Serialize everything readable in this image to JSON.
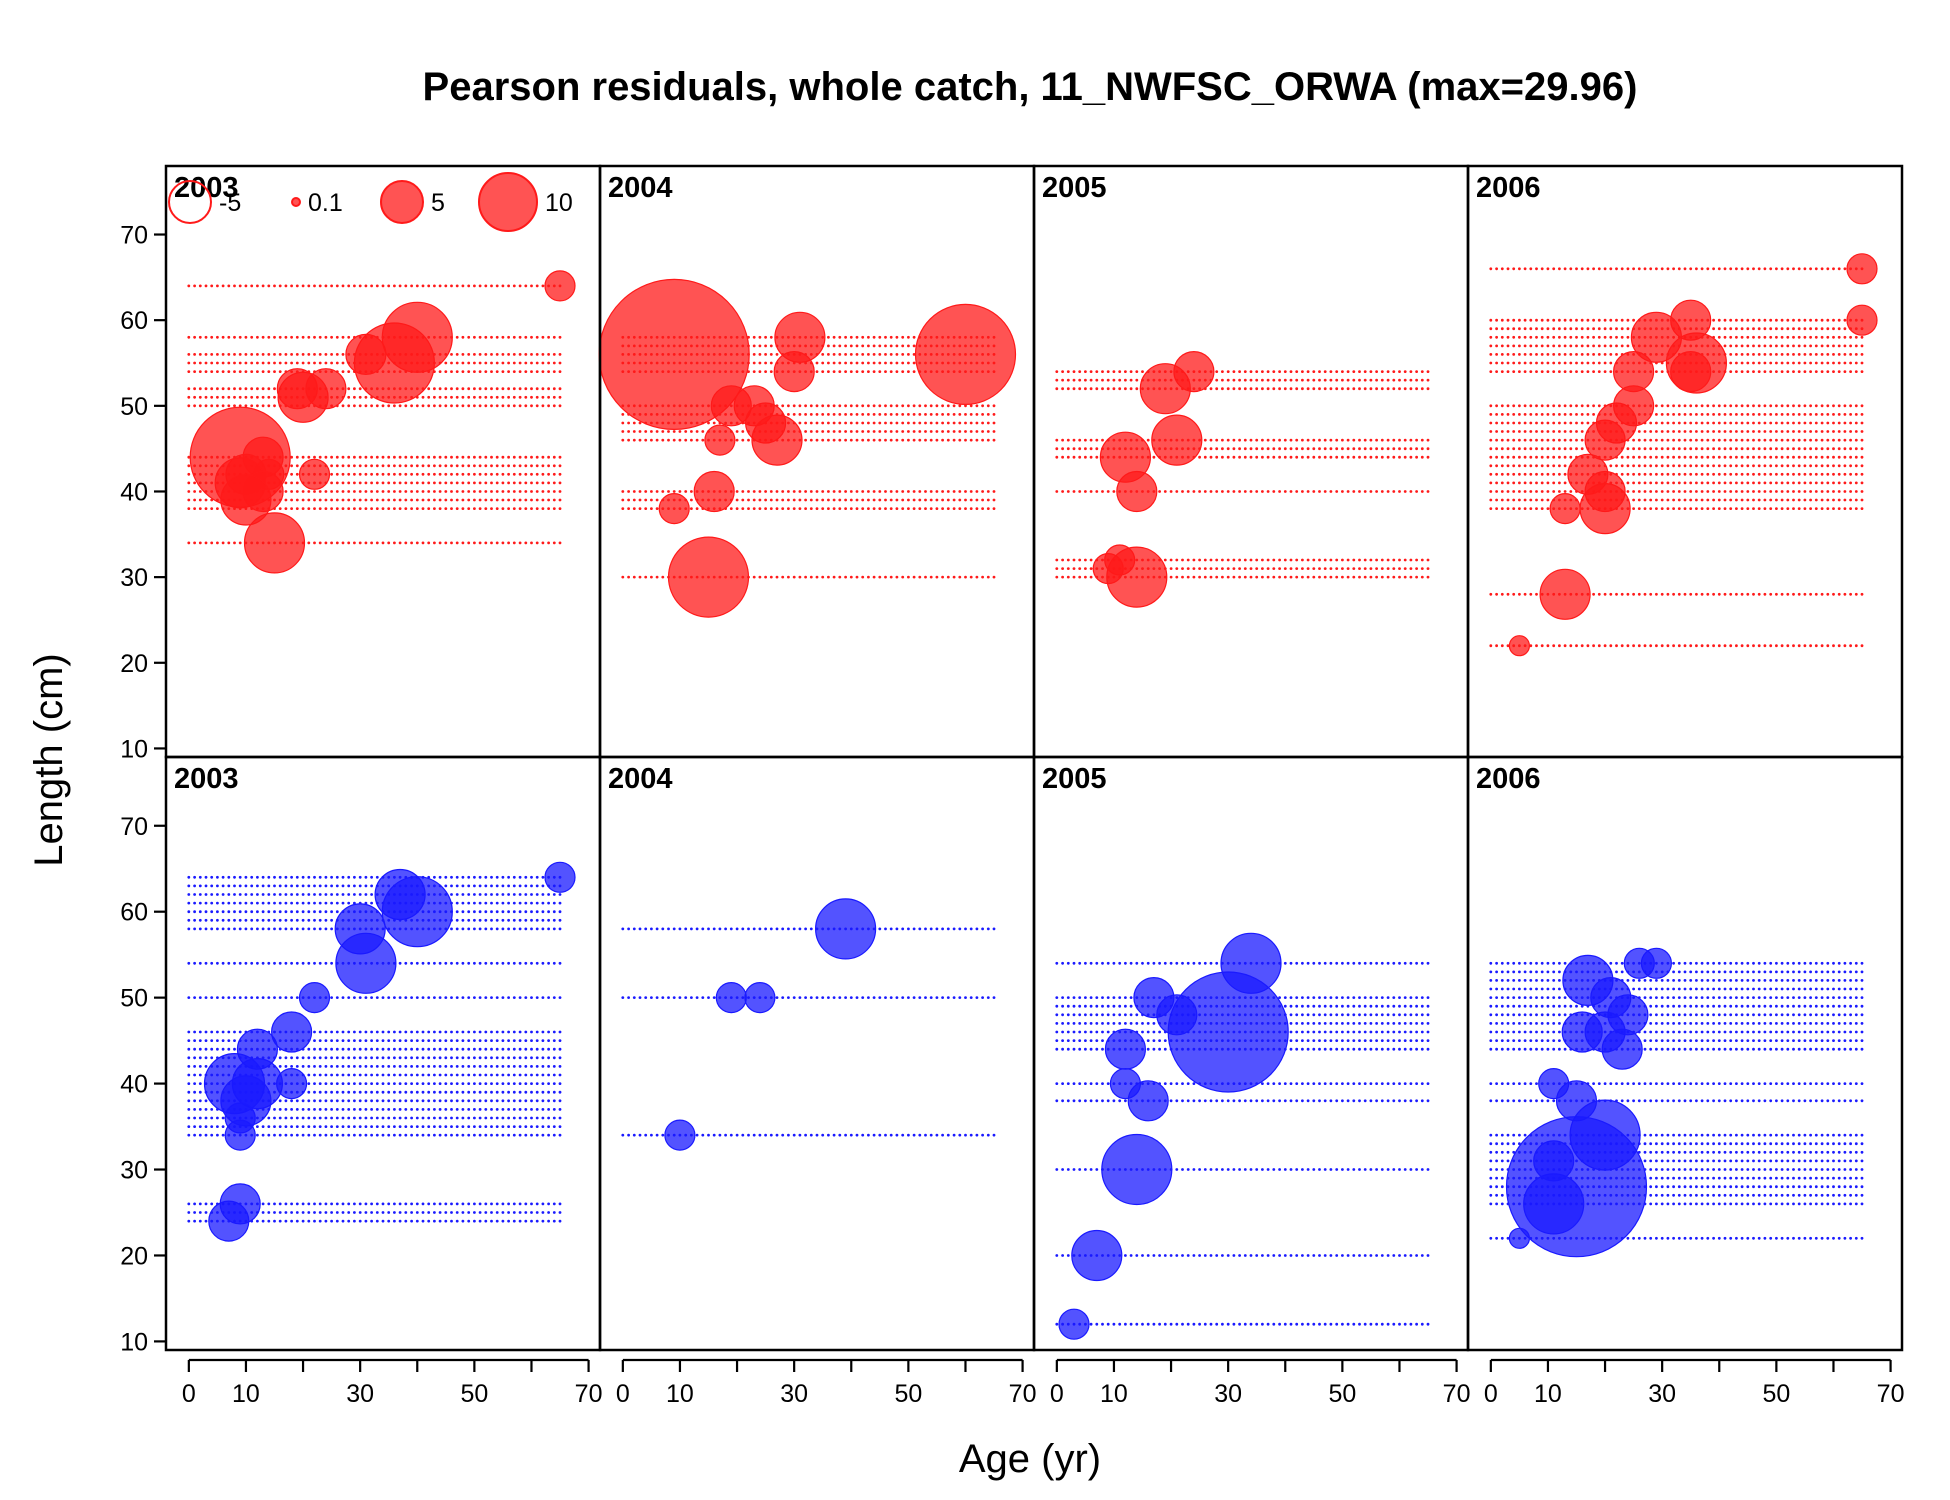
{
  "chart_data": {
    "type": "scatter",
    "subtype": "bubble-residuals",
    "title": "Pearson residuals, whole catch, 11_NWFSC_ORWA (max=29.96)",
    "xlabel": "Age (yr)",
    "ylabel": "Length (cm)",
    "xlim": [
      -4,
      72
    ],
    "ylim": [
      9,
      78
    ],
    "xticks": [
      0,
      10,
      20,
      30,
      40,
      50,
      60,
      70
    ],
    "xtick_labels": [
      "0",
      "10",
      "",
      "30",
      "",
      "50",
      "",
      "70"
    ],
    "yticks": [
      10,
      20,
      30,
      40,
      50,
      60,
      70
    ],
    "ytick_labels": [
      "10",
      "20",
      "30",
      "40",
      "50",
      "60",
      "70"
    ],
    "grid": false,
    "max_residual": 29.96,
    "colors": {
      "female": "#ff1a1a",
      "male": "#1a1aff"
    },
    "legend": {
      "position": "top-left",
      "entries": [
        {
          "label": "-5",
          "value": -5
        },
        {
          "label": "0.1",
          "value": 0.1
        },
        {
          "label": "5",
          "value": 5
        },
        {
          "label": "10",
          "value": 10
        }
      ]
    },
    "panels": [
      {
        "label": "2003",
        "row": "top",
        "color": "female",
        "age_range": [
          0,
          65
        ],
        "lengths": [
          34,
          38,
          39,
          40,
          41,
          42,
          43,
          44,
          50,
          51,
          52,
          54,
          55,
          56,
          58,
          64
        ],
        "bubbles": [
          {
            "x": 9,
            "y": 44,
            "r": 10
          },
          {
            "x": 13,
            "y": 44,
            "r": 4
          },
          {
            "x": 10,
            "y": 42,
            "r": 4
          },
          {
            "x": 14,
            "y": 42,
            "r": 3
          },
          {
            "x": 22,
            "y": 42,
            "r": 3
          },
          {
            "x": 9,
            "y": 41,
            "r": 5
          },
          {
            "x": 13,
            "y": 40,
            "r": 4
          },
          {
            "x": 10,
            "y": 39,
            "r": 5
          },
          {
            "x": 15,
            "y": 34,
            "r": 6
          },
          {
            "x": 20,
            "y": 51,
            "r": 5
          },
          {
            "x": 19,
            "y": 52,
            "r": 4
          },
          {
            "x": 24,
            "y": 52,
            "r": 4
          },
          {
            "x": 36,
            "y": 55,
            "r": 8
          },
          {
            "x": 31,
            "y": 56,
            "r": 4
          },
          {
            "x": 40,
            "y": 58,
            "r": 7
          },
          {
            "x": 65,
            "y": 64,
            "r": 3
          }
        ]
      },
      {
        "label": "2004",
        "row": "top",
        "color": "female",
        "age_range": [
          0,
          65
        ],
        "lengths": [
          30,
          38,
          39,
          40,
          46,
          47,
          48,
          49,
          50,
          54,
          55,
          56,
          57,
          58
        ],
        "bubbles": [
          {
            "x": 9,
            "y": 56,
            "r": 15
          },
          {
            "x": 60,
            "y": 56,
            "r": 10
          },
          {
            "x": 31,
            "y": 58,
            "r": 5
          },
          {
            "x": 30,
            "y": 54,
            "r": 4
          },
          {
            "x": 19,
            "y": 50,
            "r": 4
          },
          {
            "x": 23,
            "y": 50,
            "r": 4
          },
          {
            "x": 25,
            "y": 48,
            "r": 4
          },
          {
            "x": 27,
            "y": 46,
            "r": 5
          },
          {
            "x": 17,
            "y": 46,
            "r": 3
          },
          {
            "x": 16,
            "y": 40,
            "r": 4
          },
          {
            "x": 9,
            "y": 38,
            "r": 3
          },
          {
            "x": 15,
            "y": 30,
            "r": 8
          }
        ]
      },
      {
        "label": "2005",
        "row": "top",
        "color": "female",
        "age_range": [
          0,
          65
        ],
        "lengths": [
          30,
          31,
          32,
          40,
          44,
          45,
          46,
          52,
          53,
          54
        ],
        "bubbles": [
          {
            "x": 24,
            "y": 54,
            "r": 4
          },
          {
            "x": 19,
            "y": 52,
            "r": 5
          },
          {
            "x": 21,
            "y": 46,
            "r": 5
          },
          {
            "x": 12,
            "y": 44,
            "r": 5
          },
          {
            "x": 14,
            "y": 40,
            "r": 4
          },
          {
            "x": 11,
            "y": 32,
            "r": 3
          },
          {
            "x": 14,
            "y": 30,
            "r": 6
          },
          {
            "x": 9,
            "y": 31,
            "r": 3
          }
        ]
      },
      {
        "label": "2006",
        "row": "top",
        "color": "female",
        "age_range": [
          0,
          65
        ],
        "lengths": [
          22,
          28,
          38,
          39,
          40,
          41,
          42,
          43,
          44,
          45,
          46,
          47,
          48,
          49,
          50,
          54,
          55,
          56,
          57,
          58,
          59,
          60,
          66
        ],
        "bubbles": [
          {
            "x": 65,
            "y": 66,
            "r": 3
          },
          {
            "x": 65,
            "y": 60,
            "r": 3
          },
          {
            "x": 35,
            "y": 60,
            "r": 4
          },
          {
            "x": 29,
            "y": 58,
            "r": 5
          },
          {
            "x": 36,
            "y": 55,
            "r": 6
          },
          {
            "x": 35,
            "y": 54,
            "r": 4
          },
          {
            "x": 25,
            "y": 54,
            "r": 4
          },
          {
            "x": 25,
            "y": 50,
            "r": 4
          },
          {
            "x": 22,
            "y": 48,
            "r": 4
          },
          {
            "x": 20,
            "y": 46,
            "r": 4
          },
          {
            "x": 17,
            "y": 42,
            "r": 4
          },
          {
            "x": 20,
            "y": 40,
            "r": 4
          },
          {
            "x": 20,
            "y": 38,
            "r": 5
          },
          {
            "x": 13,
            "y": 28,
            "r": 5
          },
          {
            "x": 5,
            "y": 22,
            "r": 2
          },
          {
            "x": 13,
            "y": 38,
            "r": 3
          }
        ]
      },
      {
        "label": "2003",
        "row": "bottom",
        "color": "male",
        "age_range": [
          0,
          65
        ],
        "lengths": [
          24,
          25,
          26,
          34,
          35,
          36,
          37,
          38,
          39,
          40,
          41,
          42,
          43,
          44,
          45,
          46,
          50,
          54,
          58,
          59,
          60,
          61,
          62,
          63,
          64
        ],
        "bubbles": [
          {
            "x": 65,
            "y": 64,
            "r": 3
          },
          {
            "x": 37,
            "y": 62,
            "r": 5
          },
          {
            "x": 40,
            "y": 60,
            "r": 7
          },
          {
            "x": 30,
            "y": 58,
            "r": 5
          },
          {
            "x": 31,
            "y": 54,
            "r": 6
          },
          {
            "x": 22,
            "y": 50,
            "r": 3
          },
          {
            "x": 18,
            "y": 46,
            "r": 4
          },
          {
            "x": 12,
            "y": 44,
            "r": 4
          },
          {
            "x": 8,
            "y": 40,
            "r": 6
          },
          {
            "x": 12,
            "y": 40,
            "r": 5
          },
          {
            "x": 10,
            "y": 38,
            "r": 5
          },
          {
            "x": 9,
            "y": 36,
            "r": 3
          },
          {
            "x": 9,
            "y": 34,
            "r": 3
          },
          {
            "x": 9,
            "y": 26,
            "r": 4
          },
          {
            "x": 7,
            "y": 24,
            "r": 4
          },
          {
            "x": 18,
            "y": 40,
            "r": 3
          }
        ]
      },
      {
        "label": "2004",
        "row": "bottom",
        "color": "male",
        "age_range": [
          0,
          65
        ],
        "lengths": [
          34,
          50,
          58
        ],
        "bubbles": [
          {
            "x": 39,
            "y": 58,
            "r": 6
          },
          {
            "x": 19,
            "y": 50,
            "r": 3
          },
          {
            "x": 24,
            "y": 50,
            "r": 3
          },
          {
            "x": 10,
            "y": 34,
            "r": 3
          }
        ]
      },
      {
        "label": "2005",
        "row": "bottom",
        "color": "male",
        "age_range": [
          0,
          65
        ],
        "lengths": [
          12,
          20,
          30,
          38,
          40,
          44,
          45,
          46,
          47,
          48,
          49,
          50,
          54
        ],
        "bubbles": [
          {
            "x": 34,
            "y": 54,
            "r": 6
          },
          {
            "x": 17,
            "y": 50,
            "r": 4
          },
          {
            "x": 30,
            "y": 46,
            "r": 12
          },
          {
            "x": 21,
            "y": 48,
            "r": 4
          },
          {
            "x": 12,
            "y": 44,
            "r": 4
          },
          {
            "x": 12,
            "y": 40,
            "r": 3
          },
          {
            "x": 16,
            "y": 38,
            "r": 4
          },
          {
            "x": 14,
            "y": 30,
            "r": 7
          },
          {
            "x": 7,
            "y": 20,
            "r": 5
          },
          {
            "x": 3,
            "y": 12,
            "r": 3
          }
        ]
      },
      {
        "label": "2006",
        "row": "bottom",
        "color": "male",
        "age_range": [
          0,
          65
        ],
        "lengths": [
          22,
          26,
          27,
          28,
          29,
          30,
          31,
          32,
          33,
          34,
          38,
          40,
          44,
          45,
          46,
          47,
          48,
          49,
          50,
          51,
          52,
          53,
          54
        ],
        "bubbles": [
          {
            "x": 29,
            "y": 54,
            "r": 3
          },
          {
            "x": 26,
            "y": 54,
            "r": 3
          },
          {
            "x": 17,
            "y": 52,
            "r": 5
          },
          {
            "x": 21,
            "y": 50,
            "r": 4
          },
          {
            "x": 24,
            "y": 48,
            "r": 4
          },
          {
            "x": 16,
            "y": 46,
            "r": 4
          },
          {
            "x": 20,
            "y": 46,
            "r": 4
          },
          {
            "x": 23,
            "y": 44,
            "r": 4
          },
          {
            "x": 11,
            "y": 40,
            "r": 3
          },
          {
            "x": 15,
            "y": 38,
            "r": 4
          },
          {
            "x": 20,
            "y": 34,
            "r": 7
          },
          {
            "x": 15,
            "y": 28,
            "r": 14
          },
          {
            "x": 11,
            "y": 26,
            "r": 6
          },
          {
            "x": 5,
            "y": 22,
            "r": 2
          },
          {
            "x": 11,
            "y": 31,
            "r": 4
          }
        ]
      }
    ]
  }
}
